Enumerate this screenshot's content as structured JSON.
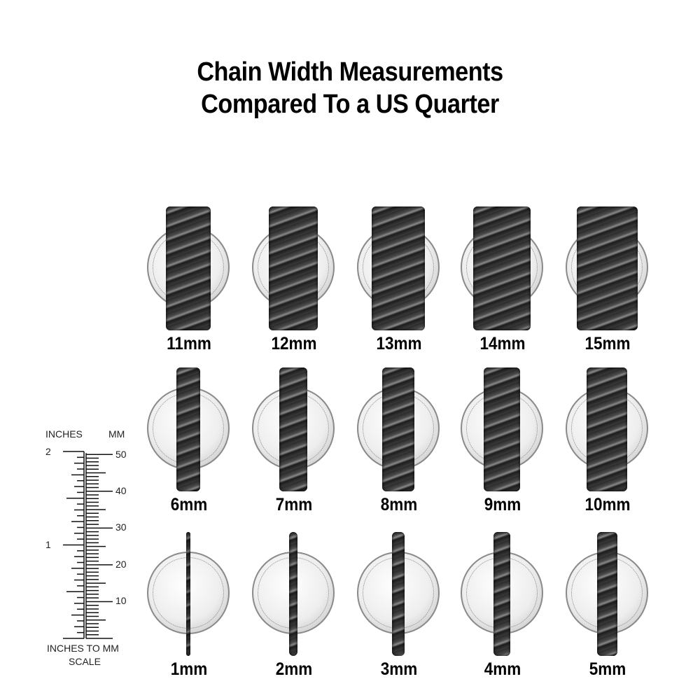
{
  "title": {
    "line1": "Chain Width Measurements",
    "line2": "Compared To a US Quarter"
  },
  "rows": [
    [
      {
        "label": "11mm",
        "mm": 11
      },
      {
        "label": "12mm",
        "mm": 12
      },
      {
        "label": "13mm",
        "mm": 13
      },
      {
        "label": "14mm",
        "mm": 14
      },
      {
        "label": "15mm",
        "mm": 15
      }
    ],
    [
      {
        "label": "6mm",
        "mm": 6
      },
      {
        "label": "7mm",
        "mm": 7
      },
      {
        "label": "8mm",
        "mm": 8
      },
      {
        "label": "9mm",
        "mm": 9
      },
      {
        "label": "10mm",
        "mm": 10
      }
    ],
    [
      {
        "label": "1mm",
        "mm": 1
      },
      {
        "label": "2mm",
        "mm": 2
      },
      {
        "label": "3mm",
        "mm": 3
      },
      {
        "label": "4mm",
        "mm": 4
      },
      {
        "label": "5mm",
        "mm": 5
      }
    ]
  ],
  "scale": {
    "inches_header": "INCHES",
    "mm_header": "MM",
    "inch_labels": [
      "2",
      "1"
    ],
    "mm_labels": [
      "50",
      "40",
      "30",
      "20",
      "10"
    ],
    "caption_line1": "INCHES TO MM",
    "caption_line2": "SCALE"
  }
}
